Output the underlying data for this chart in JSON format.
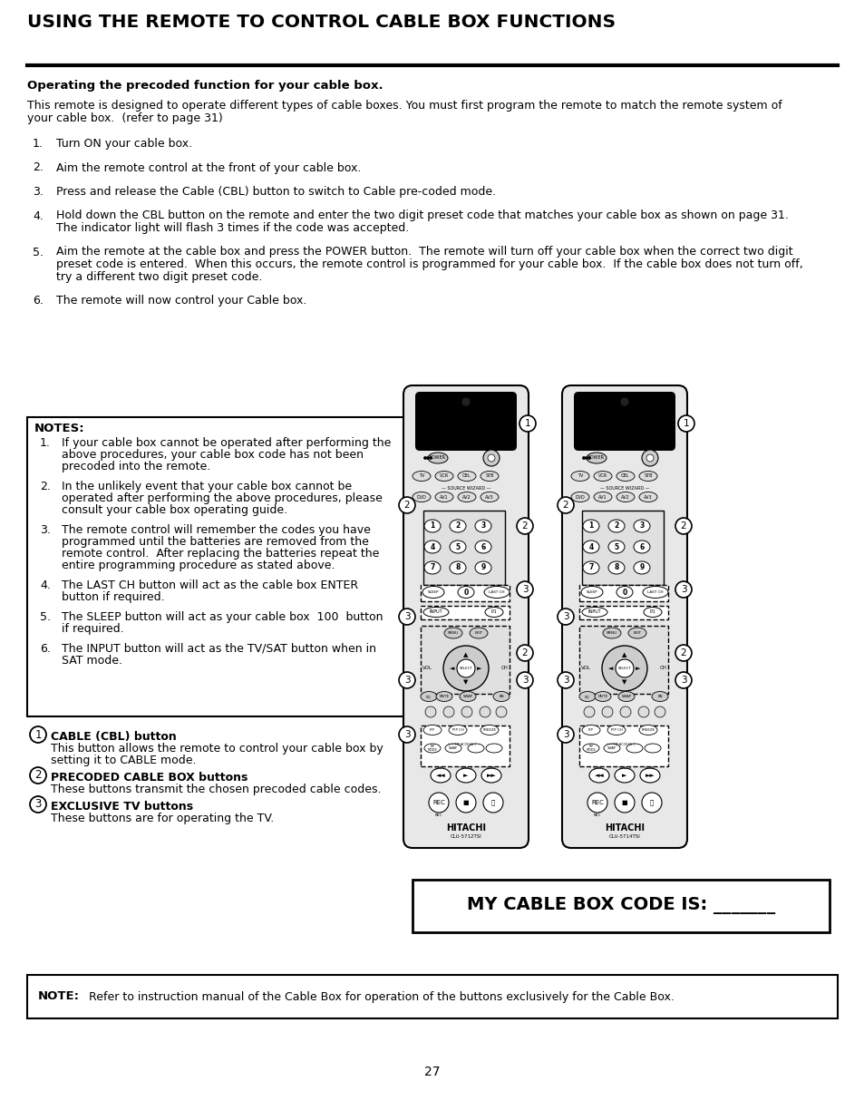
{
  "title": "USING THE REMOTE TO CONTROL CABLE BOX FUNCTIONS",
  "page_number": "27",
  "background_color": "#ffffff",
  "text_color": "#000000",
  "subtitle": "Operating the precoded function for your cable box.",
  "intro_line1": "This remote is designed to operate different types of cable boxes. You must first program the remote to match the remote system of",
  "intro_line2": "your cable box.  (refer to page 31)",
  "steps": [
    {
      "num": "1.",
      "lines": [
        "Turn ON your cable box."
      ]
    },
    {
      "num": "2.",
      "lines": [
        "Aim the remote control at the front of your cable box."
      ]
    },
    {
      "num": "3.",
      "lines": [
        "Press and release the Cable (CBL) button to switch to Cable pre-coded mode."
      ]
    },
    {
      "num": "4.",
      "lines": [
        "Hold down the CBL button on the remote and enter the two digit preset code that matches your cable box as shown on page 31.",
        "The indicator light will flash 3 times if the code was accepted."
      ]
    },
    {
      "num": "5.",
      "lines": [
        "Aim the remote at the cable box and press the POWER button.  The remote will turn off your cable box when the correct two digit",
        "preset code is entered.  When this occurs, the remote control is programmed for your cable box.  If the cable box does not turn off,",
        "try a different two digit preset code."
      ]
    },
    {
      "num": "6.",
      "lines": [
        "The remote will now control your Cable box."
      ]
    }
  ],
  "notes_title": "NOTES:",
  "notes": [
    {
      "num": "1.",
      "lines": [
        "If your cable box cannot be operated after performing the",
        "above procedures, your cable box code has not been",
        "precoded into the remote."
      ]
    },
    {
      "num": "2.",
      "lines": [
        "In the unlikely event that your cable box cannot be",
        "operated after performing the above procedures, please",
        "consult your cable box operating guide."
      ]
    },
    {
      "num": "3.",
      "lines": [
        "The remote control will remember the codes you have",
        "programmed until the batteries are removed from the",
        "remote control.  After replacing the batteries repeat the",
        "entire programming procedure as stated above."
      ]
    },
    {
      "num": "4.",
      "lines": [
        "The LAST CH button will act as the cable box ENTER",
        "button if required."
      ]
    },
    {
      "num": "5.",
      "lines": [
        "The SLEEP button will act as your cable box  100  button",
        "if required."
      ]
    },
    {
      "num": "6.",
      "lines": [
        "The INPUT button will act as the TV/SAT button when in",
        "SAT mode."
      ]
    }
  ],
  "legend_items": [
    {
      "num": "1",
      "bold_text": "CABLE (CBL) button",
      "normal_lines": [
        "This button allows the remote to control your cable box by",
        "setting it to CABLE mode."
      ]
    },
    {
      "num": "2",
      "bold_text": "PRECODED CABLE BOX buttons",
      "normal_lines": [
        "These buttons transmit the chosen precoded cable codes."
      ]
    },
    {
      "num": "3",
      "bold_text": "EXCLUSIVE TV buttons",
      "normal_lines": [
        "These buttons are for operating the TV."
      ]
    }
  ],
  "remote1_label": "CLU-5712TSI",
  "remote2_label": "CLU-5714TSI",
  "my_code_box_text1": "MY CABLE BOX CODE IS: _______",
  "note_bold": "NOTE:",
  "note_text": "Refer to instruction manual of the Cable Box for operation of the buttons exclusively for the Cable Box."
}
